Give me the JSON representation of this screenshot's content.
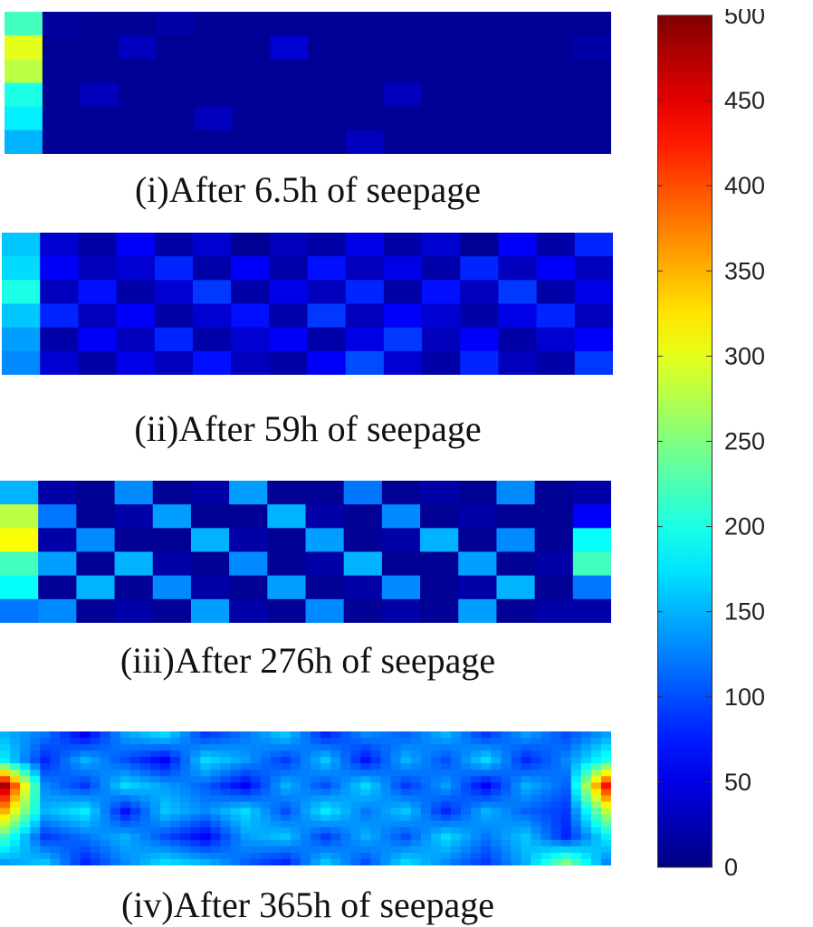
{
  "chart_data": [
    {
      "type": "heatmap",
      "caption": "(i)After 6.5h of seepage",
      "colormap": "jet",
      "values": [
        [
          220,
          15,
          10,
          10,
          20,
          10,
          10,
          10,
          10,
          10,
          10,
          10,
          10,
          10,
          10,
          10
        ],
        [
          300,
          10,
          10,
          30,
          10,
          10,
          10,
          40,
          10,
          10,
          10,
          10,
          10,
          10,
          10,
          20
        ],
        [
          280,
          10,
          10,
          10,
          10,
          10,
          10,
          10,
          10,
          10,
          10,
          10,
          10,
          10,
          10,
          10
        ],
        [
          200,
          10,
          30,
          10,
          10,
          10,
          10,
          10,
          10,
          10,
          30,
          10,
          10,
          10,
          10,
          10
        ],
        [
          180,
          10,
          10,
          10,
          10,
          30,
          10,
          10,
          10,
          10,
          10,
          10,
          10,
          10,
          10,
          10
        ],
        [
          150,
          10,
          10,
          10,
          10,
          10,
          10,
          10,
          10,
          30,
          10,
          10,
          10,
          10,
          10,
          10
        ]
      ]
    },
    {
      "type": "heatmap",
      "caption": "(ii)After 59h of seepage",
      "colormap": "jet",
      "values": [
        [
          160,
          40,
          20,
          60,
          20,
          40,
          10,
          30,
          20,
          50,
          20,
          40,
          10,
          60,
          20,
          80
        ],
        [
          170,
          60,
          30,
          40,
          80,
          20,
          60,
          20,
          70,
          30,
          50,
          20,
          80,
          30,
          60,
          30
        ],
        [
          200,
          30,
          70,
          20,
          40,
          90,
          20,
          50,
          30,
          80,
          20,
          70,
          30,
          90,
          20,
          50
        ],
        [
          160,
          80,
          30,
          60,
          20,
          40,
          70,
          20,
          90,
          30,
          60,
          40,
          20,
          50,
          80,
          30
        ],
        [
          140,
          20,
          60,
          30,
          80,
          20,
          40,
          60,
          20,
          50,
          90,
          30,
          60,
          20,
          40,
          60
        ],
        [
          130,
          40,
          20,
          50,
          30,
          70,
          30,
          20,
          60,
          100,
          40,
          20,
          80,
          30,
          20,
          90
        ]
      ]
    },
    {
      "type": "heatmap",
      "caption": "(iii)After 276h of seepage",
      "colormap": "jet",
      "values": [
        [
          150,
          20,
          10,
          130,
          10,
          20,
          140,
          10,
          10,
          120,
          10,
          20,
          10,
          130,
          10,
          20
        ],
        [
          280,
          120,
          10,
          20,
          140,
          10,
          10,
          150,
          20,
          10,
          130,
          10,
          20,
          10,
          10,
          60
        ],
        [
          310,
          20,
          130,
          10,
          10,
          150,
          20,
          10,
          140,
          10,
          20,
          150,
          10,
          130,
          10,
          190
        ],
        [
          220,
          140,
          10,
          150,
          20,
          10,
          130,
          10,
          20,
          150,
          10,
          10,
          140,
          10,
          20,
          220
        ],
        [
          190,
          10,
          150,
          10,
          130,
          20,
          10,
          140,
          10,
          20,
          130,
          10,
          20,
          150,
          10,
          120
        ],
        [
          120,
          130,
          10,
          20,
          10,
          140,
          20,
          10,
          130,
          10,
          20,
          10,
          140,
          10,
          20,
          20
        ]
      ]
    },
    {
      "type": "heatmap",
      "caption": "(iv)After 365h of seepage",
      "colormap": "jet",
      "values": [
        [
          150,
          120,
          60,
          140,
          170,
          90,
          120,
          160,
          80,
          130,
          110,
          150,
          90,
          140,
          100,
          140
        ],
        [
          180,
          80,
          150,
          100,
          60,
          170,
          140,
          90,
          160,
          70,
          150,
          100,
          170,
          80,
          130,
          200
        ],
        [
          480,
          130,
          90,
          170,
          140,
          110,
          60,
          150,
          100,
          170,
          90,
          140,
          60,
          150,
          110,
          430
        ],
        [
          350,
          150,
          180,
          70,
          160,
          130,
          170,
          100,
          180,
          120,
          160,
          80,
          150,
          110,
          90,
          280
        ],
        [
          220,
          90,
          120,
          150,
          100,
          60,
          140,
          160,
          90,
          150,
          100,
          170,
          120,
          160,
          80,
          180
        ],
        [
          140,
          160,
          80,
          130,
          170,
          150,
          110,
          80,
          160,
          100,
          170,
          130,
          90,
          150,
          250,
          130
        ]
      ]
    }
  ],
  "colorbar": {
    "colormap": "jet",
    "range": [
      0,
      500
    ],
    "ticks": [
      "0",
      "50",
      "100",
      "150",
      "200",
      "250",
      "300",
      "350",
      "400",
      "450",
      "500"
    ]
  }
}
